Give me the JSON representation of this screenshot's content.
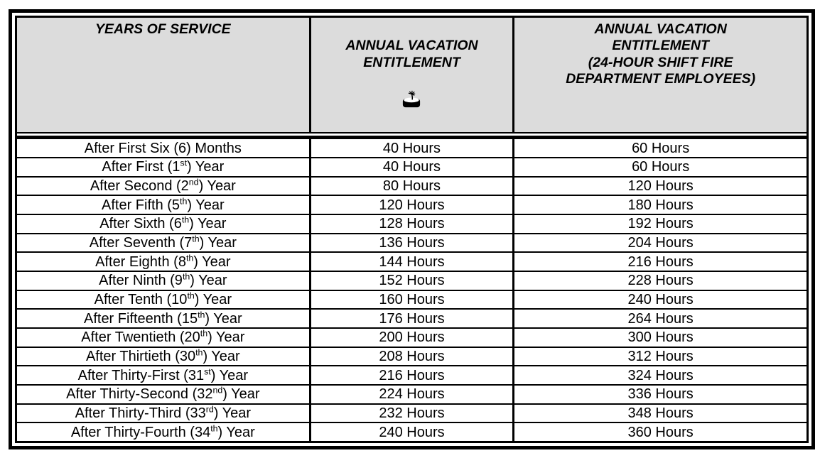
{
  "colors": {
    "page_bg": "#ffffff",
    "header_bg": "#dcdcdc",
    "border": "#000000",
    "text": "#000000"
  },
  "table": {
    "header": {
      "col1": "YEARS OF SERVICE",
      "col2": "ANNUAL VACATION\nENTITLEMENT",
      "col2_icon": "palm-island-icon",
      "col3": "ANNUAL VACATION\nENTITLEMENT\n(24-HOUR SHIFT FIRE\nDEPARTMENT EMPLOYEES)"
    },
    "rows": [
      {
        "service_pre": "After First Six (6) Months",
        "service_sup": "",
        "service_post": "",
        "standard": "40 Hours",
        "fire": "60 Hours"
      },
      {
        "service_pre": "After First (1",
        "service_sup": "st",
        "service_post": ") Year",
        "standard": "40 Hours",
        "fire": "60 Hours"
      },
      {
        "service_pre": "After Second (2",
        "service_sup": "nd",
        "service_post": ") Year",
        "standard": "80 Hours",
        "fire": "120 Hours"
      },
      {
        "service_pre": "After Fifth (5",
        "service_sup": "th",
        "service_post": ") Year",
        "standard": "120 Hours",
        "fire": "180 Hours"
      },
      {
        "service_pre": "After Sixth (6",
        "service_sup": "th",
        "service_post": ") Year",
        "standard": "128 Hours",
        "fire": "192 Hours"
      },
      {
        "service_pre": "After Seventh (7",
        "service_sup": "th",
        "service_post": ") Year",
        "standard": "136 Hours",
        "fire": "204 Hours"
      },
      {
        "service_pre": "After Eighth (8",
        "service_sup": "th",
        "service_post": ") Year",
        "standard": "144 Hours",
        "fire": "216 Hours"
      },
      {
        "service_pre": "After Ninth (9",
        "service_sup": "th",
        "service_post": ") Year",
        "standard": "152 Hours",
        "fire": "228 Hours"
      },
      {
        "service_pre": "After Tenth (10",
        "service_sup": "th",
        "service_post": ") Year",
        "standard": "160 Hours",
        "fire": "240 Hours"
      },
      {
        "service_pre": "After Fifteenth (15",
        "service_sup": "th",
        "service_post": ") Year",
        "standard": "176 Hours",
        "fire": "264 Hours"
      },
      {
        "service_pre": "After Twentieth (20",
        "service_sup": "th",
        "service_post": ") Year",
        "standard": "200 Hours",
        "fire": "300 Hours"
      },
      {
        "service_pre": "After Thirtieth (30",
        "service_sup": "th",
        "service_post": ") Year",
        "standard": "208 Hours",
        "fire": "312 Hours"
      },
      {
        "service_pre": "After Thirty-First (31",
        "service_sup": "st",
        "service_post": ") Year",
        "standard": "216 Hours",
        "fire": "324 Hours"
      },
      {
        "service_pre": "After Thirty-Second (32",
        "service_sup": "nd",
        "service_post": ") Year",
        "standard": "224 Hours",
        "fire": "336 Hours"
      },
      {
        "service_pre": "After Thirty-Third (33",
        "service_sup": "rd",
        "service_post": ") Year",
        "standard": "232 Hours",
        "fire": "348 Hours"
      },
      {
        "service_pre": "After Thirty-Fourth (34",
        "service_sup": "th",
        "service_post": ") Year",
        "standard": "240 Hours",
        "fire": "360 Hours"
      }
    ]
  }
}
